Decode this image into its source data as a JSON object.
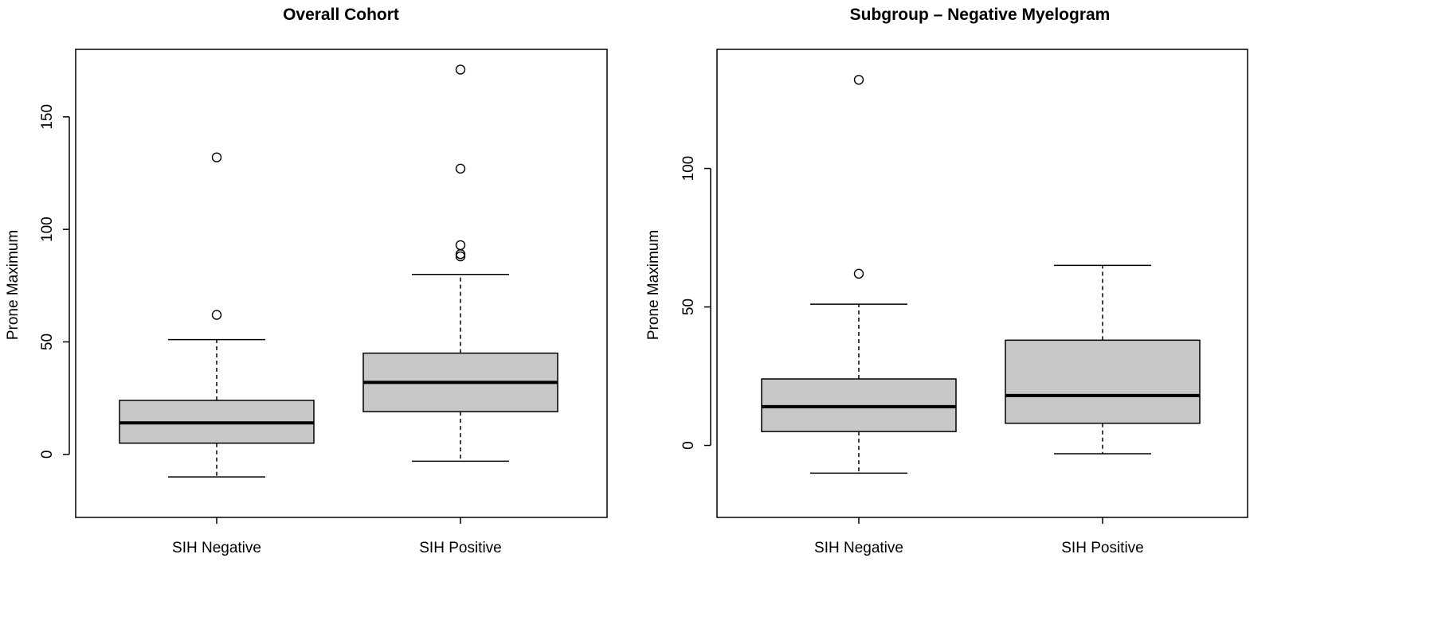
{
  "chart_data": [
    {
      "type": "box",
      "title": "Overall Cohort",
      "xlabel": "",
      "ylabel": "Prone Maximum",
      "ylim": [
        -28,
        180
      ],
      "yticks": [
        0,
        50,
        100,
        150
      ],
      "categories": [
        "SIH Negative",
        "SIH Positive"
      ],
      "boxes": [
        {
          "category": "SIH Negative",
          "whisker_low": -10,
          "q1": 5,
          "median": 14,
          "q3": 24,
          "whisker_high": 51,
          "outliers": [
            62,
            132
          ]
        },
        {
          "category": "SIH Positive",
          "whisker_low": -3,
          "q1": 19,
          "median": 32,
          "q3": 45,
          "whisker_high": 80,
          "outliers": [
            88,
            89,
            93,
            127,
            171
          ]
        }
      ]
    },
    {
      "type": "box",
      "title": "Subgroup – Negative Myelogram",
      "xlabel": "",
      "ylabel": "Prone Maximum",
      "ylim": [
        -26,
        143
      ],
      "yticks": [
        0,
        50,
        100
      ],
      "categories": [
        "SIH Negative",
        "SIH Positive"
      ],
      "boxes": [
        {
          "category": "SIH Negative",
          "whisker_low": -10,
          "q1": 5,
          "median": 14,
          "q3": 24,
          "whisker_high": 51,
          "outliers": [
            62,
            132
          ]
        },
        {
          "category": "SIH Positive",
          "whisker_low": -3,
          "q1": 8,
          "median": 18,
          "q3": 38,
          "whisker_high": 65,
          "outliers": []
        }
      ]
    }
  ]
}
